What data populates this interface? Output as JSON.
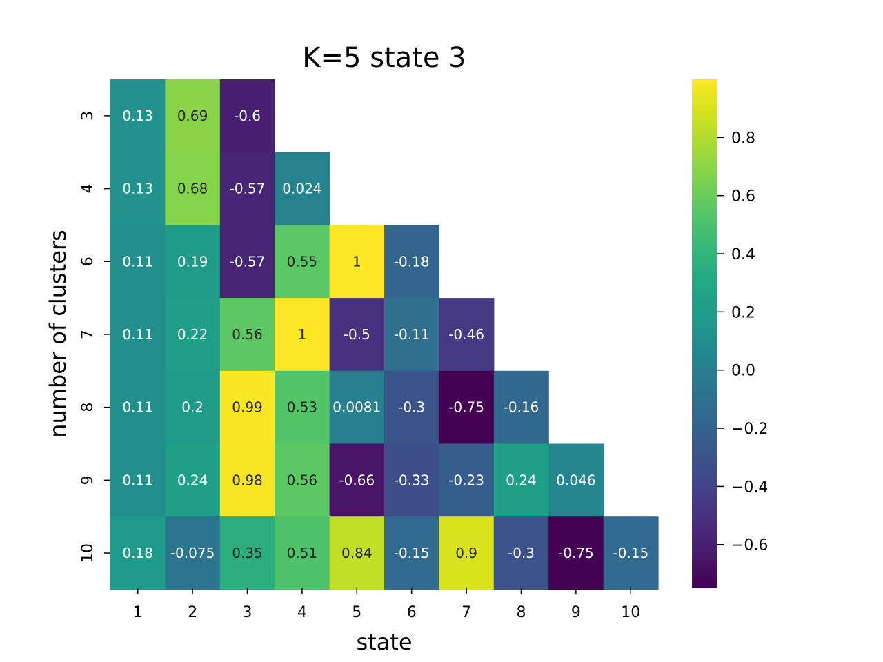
{
  "chart_data": {
    "type": "heatmap",
    "title": "K=5 state 3",
    "xlabel": "state",
    "ylabel": "number of clusters",
    "x_categories": [
      "1",
      "2",
      "3",
      "4",
      "5",
      "6",
      "7",
      "8",
      "9",
      "10"
    ],
    "y_categories": [
      "3",
      "4",
      "6",
      "7",
      "8",
      "9",
      "10"
    ],
    "values": [
      [
        0.13,
        0.69,
        -0.6,
        null,
        null,
        null,
        null,
        null,
        null,
        null
      ],
      [
        0.13,
        0.68,
        -0.57,
        0.024,
        null,
        null,
        null,
        null,
        null,
        null
      ],
      [
        0.11,
        0.19,
        -0.57,
        0.55,
        1,
        -0.18,
        null,
        null,
        null,
        null
      ],
      [
        0.11,
        0.22,
        0.56,
        1,
        -0.5,
        -0.11,
        -0.46,
        null,
        null,
        null
      ],
      [
        0.11,
        0.2,
        0.99,
        0.53,
        0.0081,
        -0.3,
        -0.75,
        -0.16,
        null,
        null
      ],
      [
        0.11,
        0.24,
        0.98,
        0.56,
        -0.66,
        -0.33,
        -0.23,
        0.24,
        0.046,
        null
      ],
      [
        0.18,
        -0.075,
        0.35,
        0.51,
        0.84,
        -0.15,
        0.9,
        -0.3,
        -0.75,
        -0.15
      ]
    ],
    "annotations": [
      [
        "0.13",
        "0.69",
        "-0.6",
        "",
        "",
        "",
        "",
        "",
        "",
        ""
      ],
      [
        "0.13",
        "0.68",
        "-0.57",
        "0.024",
        "",
        "",
        "",
        "",
        "",
        ""
      ],
      [
        "0.11",
        "0.19",
        "-0.57",
        "0.55",
        "1",
        "-0.18",
        "",
        "",
        "",
        ""
      ],
      [
        "0.11",
        "0.22",
        "0.56",
        "1",
        "-0.5",
        "-0.11",
        "-0.46",
        "",
        "",
        ""
      ],
      [
        "0.11",
        "0.2",
        "0.99",
        "0.53",
        "0.0081",
        "-0.3",
        "-0.75",
        "-0.16",
        "",
        ""
      ],
      [
        "0.11",
        "0.24",
        "0.98",
        "0.56",
        "-0.66",
        "-0.33",
        "-0.23",
        "0.24",
        "0.046",
        ""
      ],
      [
        "0.18",
        "-0.075",
        "0.35",
        "0.51",
        "0.84",
        "-0.15",
        "0.9",
        "-0.3",
        "-0.75",
        "-0.15"
      ]
    ],
    "colormap": "viridis",
    "vmin": -0.75,
    "vmax": 1,
    "colorbar": {
      "ticks": [
        0.8,
        0.6,
        0.4,
        0.2,
        0.0,
        -0.2,
        -0.4,
        -0.6
      ],
      "tick_labels": [
        "0.8",
        "0.6",
        "0.4",
        "0.2",
        "0.0",
        "−0.2",
        "−0.4",
        "−0.6"
      ]
    },
    "grid": false,
    "colorbar_position": "right"
  }
}
